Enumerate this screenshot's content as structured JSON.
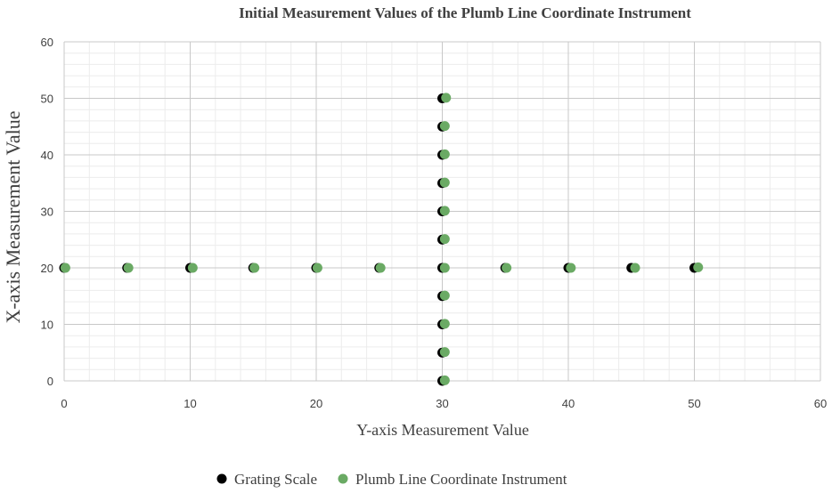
{
  "chart_data": {
    "type": "scatter",
    "title": "Initial Measurement Values of the Plumb Line Coordinate Instrument",
    "xlabel": "Y-axis Measurement Value",
    "ylabel": "X-axis Measurement Value",
    "xlim": [
      0,
      60
    ],
    "ylim": [
      0,
      60
    ],
    "xticks": [
      "0",
      "10",
      "20",
      "30",
      "40",
      "50",
      "60"
    ],
    "yticks": [
      "0",
      "10",
      "20",
      "30",
      "40",
      "50",
      "60"
    ],
    "grid": true,
    "legend_position": "bottom",
    "series": [
      {
        "name": "Grating Scale",
        "color": "#000000",
        "points": [
          [
            0,
            20
          ],
          [
            5,
            20
          ],
          [
            10,
            20
          ],
          [
            15,
            20
          ],
          [
            20,
            20
          ],
          [
            25,
            20
          ],
          [
            30,
            20
          ],
          [
            35,
            20
          ],
          [
            40,
            20
          ],
          [
            45,
            20
          ],
          [
            50,
            20
          ],
          [
            30,
            0
          ],
          [
            30,
            5
          ],
          [
            30,
            10
          ],
          [
            30,
            15
          ],
          [
            30,
            25
          ],
          [
            30,
            30
          ],
          [
            30,
            35
          ],
          [
            30,
            40
          ],
          [
            30,
            45
          ],
          [
            30,
            50
          ]
        ]
      },
      {
        "name": "Plumb Line Coordinate Instrument",
        "color": "#6aaa64",
        "points": [
          [
            0.1,
            20
          ],
          [
            5.1,
            20
          ],
          [
            10.2,
            20
          ],
          [
            15.1,
            20
          ],
          [
            20.1,
            20
          ],
          [
            25.1,
            20
          ],
          [
            30.2,
            20
          ],
          [
            35.1,
            20
          ],
          [
            40.2,
            20
          ],
          [
            45.3,
            20
          ],
          [
            50.3,
            20.1
          ],
          [
            30.2,
            0.1
          ],
          [
            30.2,
            5.1
          ],
          [
            30.2,
            10.1
          ],
          [
            30.2,
            15.1
          ],
          [
            30.2,
            25.1
          ],
          [
            30.2,
            30.1
          ],
          [
            30.2,
            35.1
          ],
          [
            30.2,
            40.1
          ],
          [
            30.2,
            45.1
          ],
          [
            30.3,
            50.1
          ]
        ]
      }
    ]
  }
}
